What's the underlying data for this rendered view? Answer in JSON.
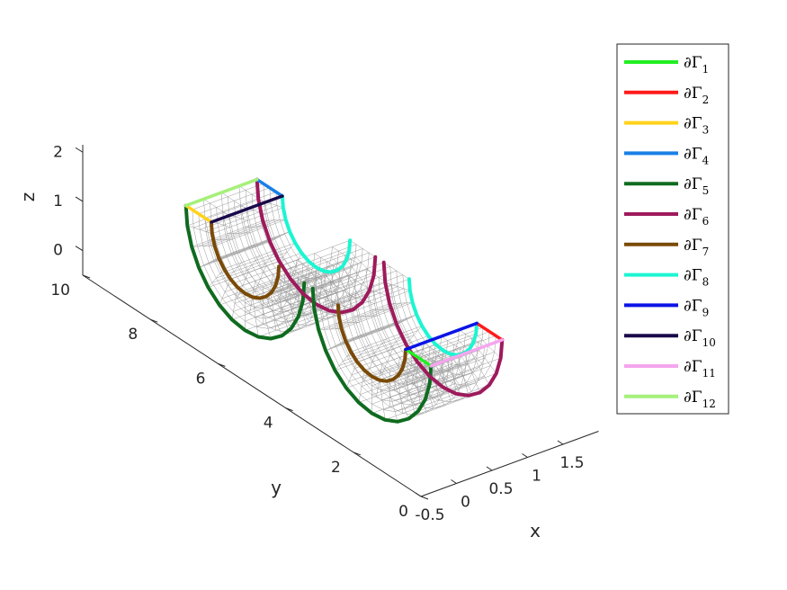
{
  "chart_data": {
    "type": "3d-wireframe",
    "xlabel": "x",
    "ylabel": "y",
    "zlabel": "z",
    "xticks": [
      "-0.5",
      "0",
      "0.5",
      "1",
      "1.5"
    ],
    "yticks": [
      "0",
      "2",
      "4",
      "6",
      "8",
      "10"
    ],
    "zticks": [
      "0",
      "1",
      "2"
    ],
    "xlim": [
      -0.5,
      1.5
    ],
    "ylim": [
      0,
      10
    ],
    "zlim": [
      -1,
      2
    ],
    "legend_position": "top-right",
    "series": [
      {
        "name": "∂Γ",
        "sub": "1",
        "color": "#22ee22"
      },
      {
        "name": "∂Γ",
        "sub": "2",
        "color": "#ff1a1a"
      },
      {
        "name": "∂Γ",
        "sub": "3",
        "color": "#ffd21a"
      },
      {
        "name": "∂Γ",
        "sub": "4",
        "color": "#1a7fe6"
      },
      {
        "name": "∂Γ",
        "sub": "5",
        "color": "#0f6b1f"
      },
      {
        "name": "∂Γ",
        "sub": "6",
        "color": "#9e1a5c"
      },
      {
        "name": "∂Γ",
        "sub": "7",
        "color": "#7a4a08"
      },
      {
        "name": "∂Γ",
        "sub": "8",
        "color": "#1cf5d2"
      },
      {
        "name": "∂Γ",
        "sub": "9",
        "color": "#0a14e6"
      },
      {
        "name": "∂Γ",
        "sub": "10",
        "color": "#1a0a4a"
      },
      {
        "name": "∂Γ",
        "sub": "11",
        "color": "#f5a5ee"
      },
      {
        "name": "∂Γ",
        "sub": "12",
        "color": "#a5f07a"
      }
    ]
  }
}
